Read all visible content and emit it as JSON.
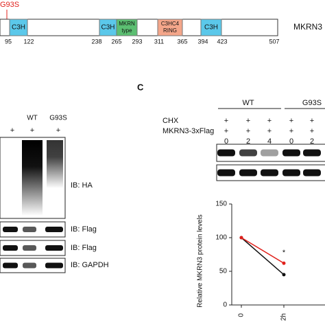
{
  "panel_a": {
    "mutation": "G93S",
    "protein": "MKRN3",
    "domains": [
      {
        "lines": [
          "C3H"
        ]
      },
      {
        "lines": [
          "C3H"
        ]
      },
      {
        "lines": [
          "MKRN",
          "type"
        ]
      },
      {
        "lines": [
          "C3HC4",
          "RING"
        ]
      },
      {
        "lines": [
          "C3H"
        ]
      }
    ],
    "residues": [
      95,
      122,
      238,
      265,
      293,
      311,
      365,
      394,
      423,
      507
    ]
  },
  "panel_b": {
    "columns": [
      "WT",
      "G93S"
    ],
    "plus": [
      "+",
      "+",
      "+"
    ],
    "blots": [
      "IB: HA",
      "IB: Flag",
      "IB: Flag",
      "IB: GAPDH"
    ]
  },
  "panel_c": {
    "letter": "C",
    "groups": [
      "WT",
      "G93S"
    ],
    "rows": [
      {
        "label": "CHX",
        "marks": [
          "+",
          "+",
          "+",
          "+",
          "+"
        ]
      },
      {
        "label": "MKRN3-3xFlag",
        "marks": [
          "+",
          "+",
          "+",
          "+",
          "+"
        ]
      }
    ],
    "times": [
      0,
      2,
      4,
      0,
      2
    ]
  },
  "chart_data": {
    "type": "line",
    "y_label": "Relative MKRN3 protein levels",
    "categories": [
      "0",
      "2h"
    ],
    "series": [
      {
        "color": "#111111",
        "values": [
          100,
          45
        ]
      },
      {
        "color": "#e0201b",
        "values": [
          100,
          62
        ]
      }
    ],
    "annotation": "*",
    "ylim": [
      0,
      150
    ],
    "yticks": [
      0,
      50,
      100,
      150
    ]
  }
}
